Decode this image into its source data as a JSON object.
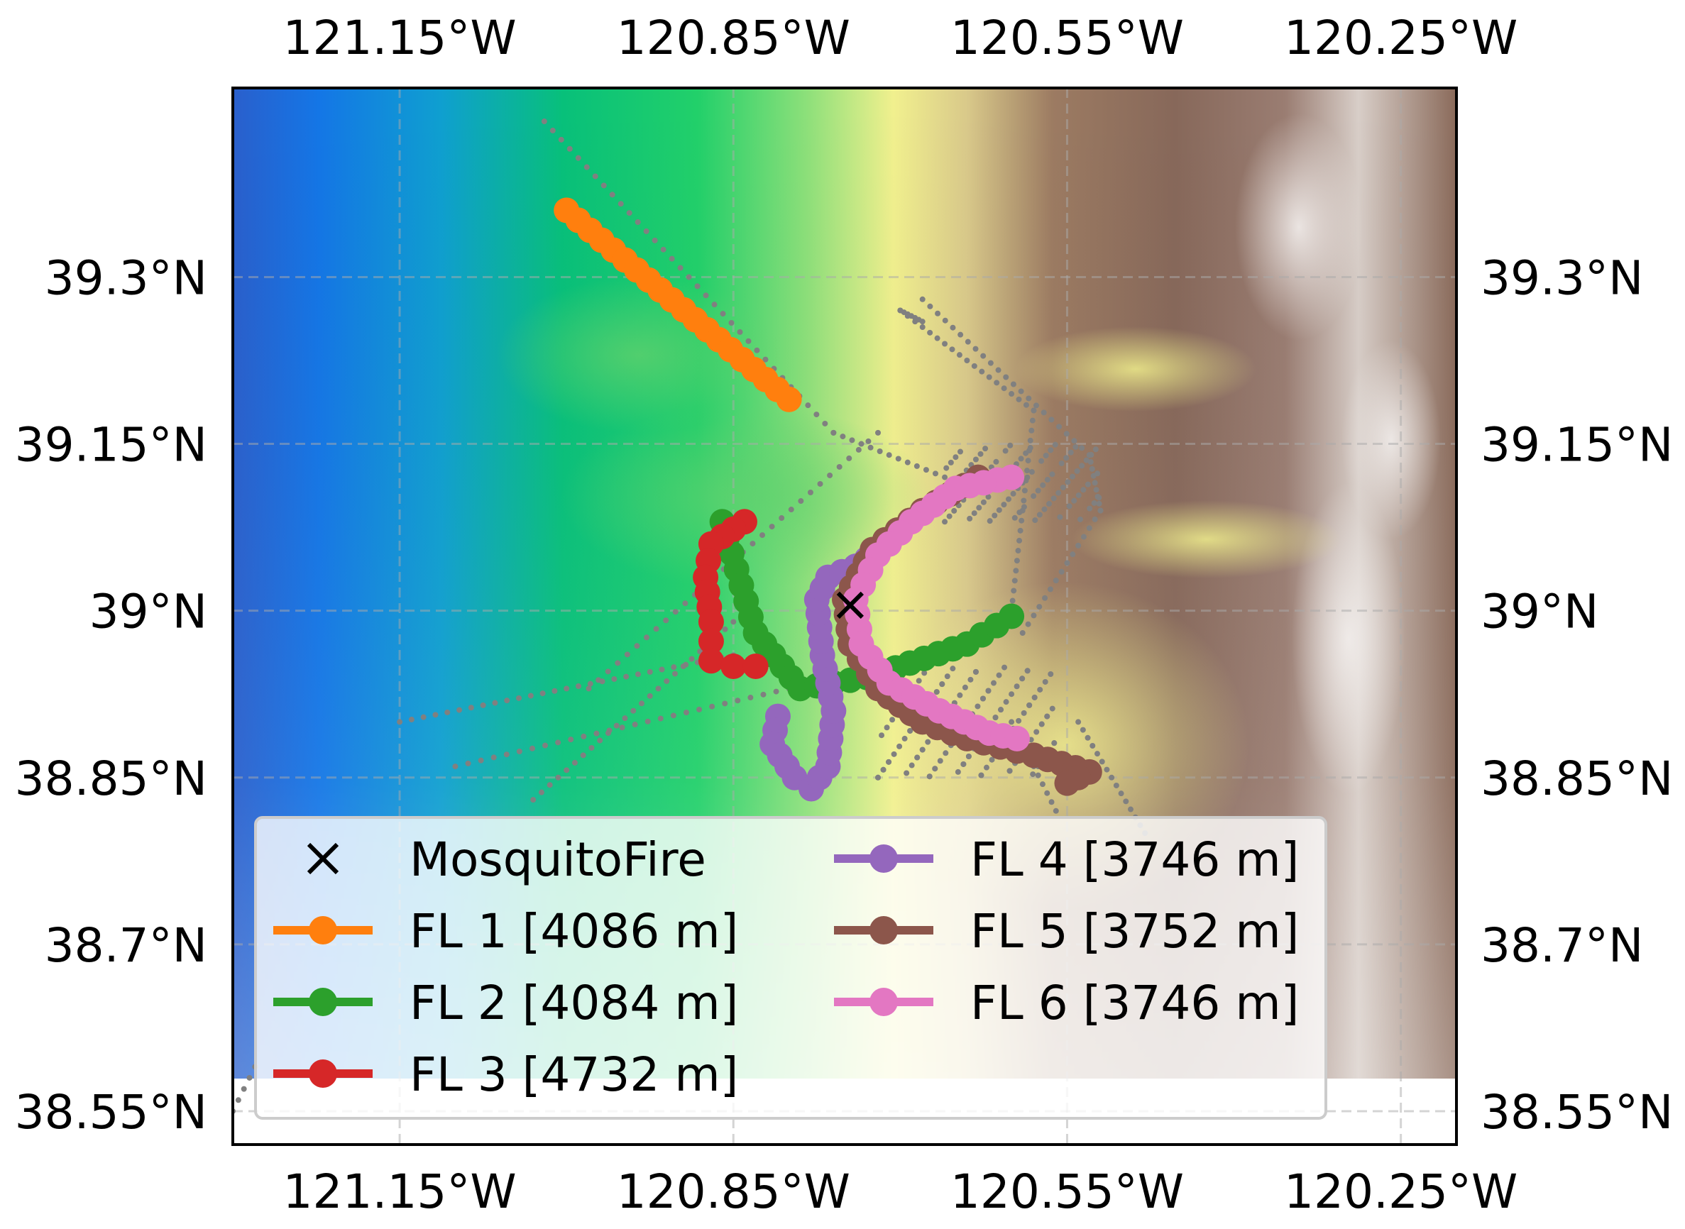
{
  "chart_data": {
    "type": "scatter",
    "map": "terrain elevation map with flight-leg tracks",
    "xlim": [
      -121.3,
      -120.2
    ],
    "ylim": [
      38.52,
      39.47
    ],
    "grid": true,
    "x_ticks": [
      {
        "value": -121.15,
        "label": "121.15°W"
      },
      {
        "value": -120.85,
        "label": "120.85°W"
      },
      {
        "value": -120.55,
        "label": "120.55°W"
      },
      {
        "value": -120.25,
        "label": "120.25°W"
      }
    ],
    "y_ticks": [
      {
        "value": 39.3,
        "label": "39.3°N"
      },
      {
        "value": 39.15,
        "label": "39.15°N"
      },
      {
        "value": 39.0,
        "label": "39°N"
      },
      {
        "value": 38.85,
        "label": "38.85°N"
      },
      {
        "value": 38.7,
        "label": "38.7°N"
      },
      {
        "value": 38.55,
        "label": "38.55°N"
      }
    ],
    "fire": {
      "name": "MosquitoFire",
      "lon": -120.745,
      "lat": 39.005,
      "marker": "x",
      "color": "#000000"
    },
    "colors": {
      "FL1": "#ff7f0e",
      "FL2": "#2ca02c",
      "FL3": "#d62728",
      "FL4": "#9467bd",
      "FL5": "#8c564b",
      "FL6": "#e377c2",
      "trajectory_dots": "#808080"
    },
    "series": [
      {
        "name": "FL 1 [4086 m]",
        "color": "#ff7f0e",
        "points": [
          [
            -121.0,
            39.36
          ],
          [
            -120.8,
            39.19
          ]
        ]
      },
      {
        "name": "FL 2 [4084 m]",
        "color": "#2ca02c",
        "points": [
          [
            -120.86,
            39.08
          ],
          [
            -120.83,
            38.98
          ],
          [
            -120.79,
            38.93
          ],
          [
            -120.73,
            38.94
          ],
          [
            -120.64,
            38.97
          ],
          [
            -120.6,
            38.995
          ]
        ]
      },
      {
        "name": "FL 3 [4732 m]",
        "color": "#d62728",
        "points": [
          [
            -120.84,
            39.08
          ],
          [
            -120.87,
            39.06
          ],
          [
            -120.875,
            39.03
          ],
          [
            -120.87,
            38.99
          ],
          [
            -120.87,
            38.955
          ],
          [
            -120.85,
            38.95
          ],
          [
            -120.83,
            38.95
          ]
        ]
      },
      {
        "name": "FL 4 [3746 m]",
        "color": "#9467bd",
        "points": [
          [
            -120.81,
            38.905
          ],
          [
            -120.815,
            38.88
          ],
          [
            -120.795,
            38.85
          ],
          [
            -120.78,
            38.84
          ],
          [
            -120.765,
            38.86
          ],
          [
            -120.76,
            38.91
          ],
          [
            -120.77,
            38.96
          ],
          [
            -120.775,
            39.01
          ],
          [
            -120.765,
            39.03
          ],
          [
            -120.74,
            39.04
          ],
          [
            -120.71,
            39.06
          ]
        ]
      },
      {
        "name": "FL 5 [3752 m]",
        "color": "#8c564b",
        "points": [
          [
            -120.63,
            39.12
          ],
          [
            -120.68,
            39.09
          ],
          [
            -120.725,
            39.055
          ],
          [
            -120.75,
            39.01
          ],
          [
            -120.745,
            38.97
          ],
          [
            -120.72,
            38.93
          ],
          [
            -120.68,
            38.9
          ],
          [
            -120.64,
            38.885
          ],
          [
            -120.58,
            38.87
          ],
          [
            -120.53,
            38.855
          ],
          [
            -120.55,
            38.845
          ]
        ]
      },
      {
        "name": "FL 6 [3746 m]",
        "color": "#e377c2",
        "points": [
          [
            -120.6,
            39.12
          ],
          [
            -120.65,
            39.11
          ],
          [
            -120.69,
            39.08
          ],
          [
            -120.72,
            39.05
          ],
          [
            -120.74,
            39.01
          ],
          [
            -120.735,
            38.97
          ],
          [
            -120.71,
            38.935
          ],
          [
            -120.665,
            38.91
          ],
          [
            -120.62,
            38.89
          ],
          [
            -120.595,
            38.885
          ]
        ]
      }
    ],
    "legend": {
      "placement": "lower-left",
      "columns": 2,
      "entries": [
        "MosquitoFire",
        "FL 1 [4086 m]",
        "FL 2 [4084 m]",
        "FL 3 [4732 m]",
        "FL 4 [3746 m]",
        "FL 5 [3752 m]",
        "FL 6 [3746 m]"
      ]
    }
  }
}
